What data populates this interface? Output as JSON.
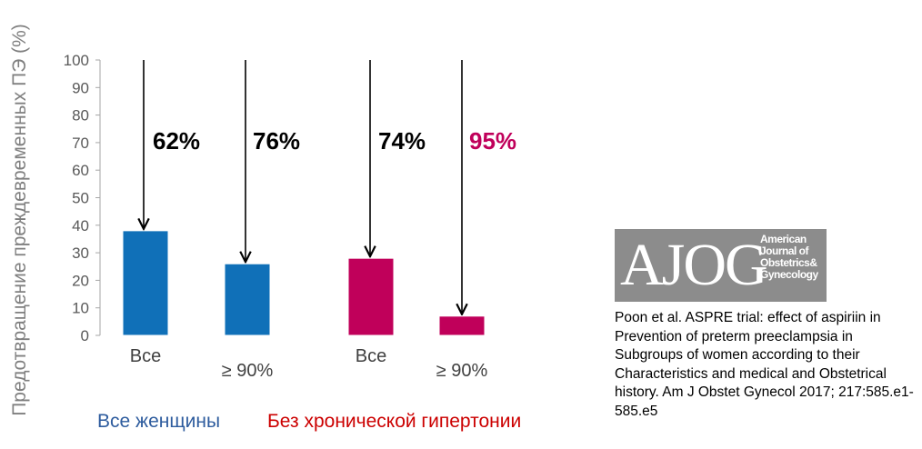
{
  "chart_data": {
    "type": "bar",
    "ylabel": "Предотвращение преждевременных ПЭ (%)",
    "ylim": [
      0,
      100
    ],
    "yticks": [
      0,
      10,
      20,
      30,
      40,
      50,
      60,
      70,
      80,
      90,
      100
    ],
    "categories": [
      "Все",
      "≥ 90%",
      "Все",
      "≥ 90%"
    ],
    "values": [
      38,
      26,
      28,
      7
    ],
    "colors": [
      "#1070b8",
      "#1070b8",
      "#c0005a",
      "#c0005a"
    ],
    "reduction_labels": [
      "62%",
      "76%",
      "74%",
      "95%"
    ],
    "reduction_label_colors": [
      "#000000",
      "#000000",
      "#000000",
      "#c0005a"
    ],
    "groups": [
      {
        "label": "Все женщины",
        "color": "#2e5c9e"
      },
      {
        "label": "Без хронической гипертонии",
        "color": "#cc0000"
      }
    ],
    "grid": false
  },
  "logo": {
    "main": "AJOG",
    "sub": [
      "American",
      "Journal of",
      "Obstetrics&",
      "Gynecology"
    ]
  },
  "citation": "Poon et al. ASPRE trial: effect of aspiriin in Prevention of preterm preeclampsia in Subgroups of women according to their Characteristics and medical and Obstetrical history. Am J Obstet Gynecol 2017; 217:585.e1-585.e5"
}
